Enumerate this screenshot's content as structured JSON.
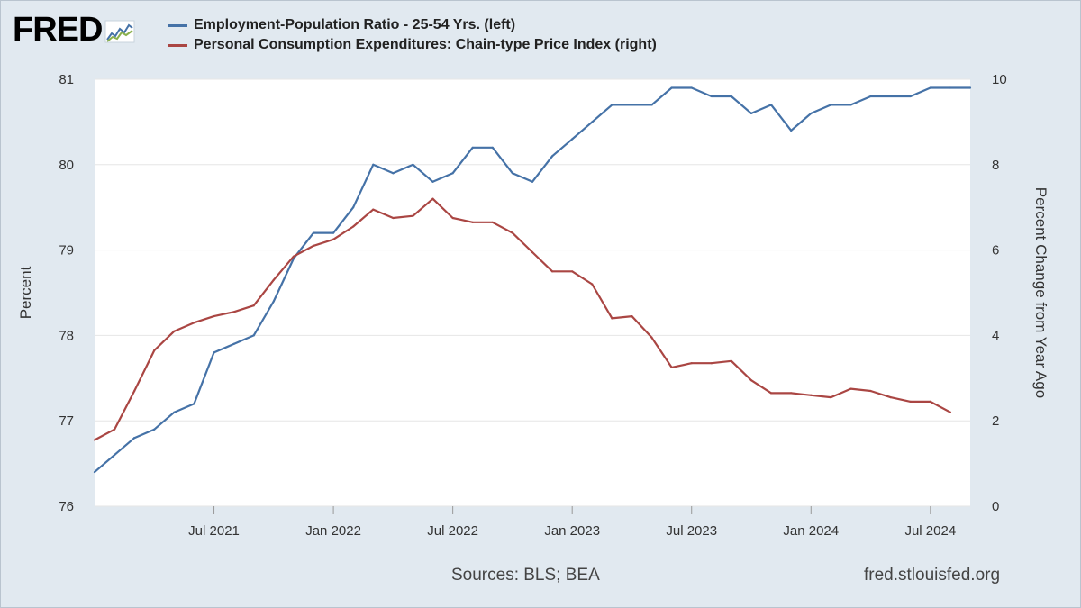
{
  "brand": {
    "logo_text": "FRED"
  },
  "footer": {
    "sources": "Sources: BLS; BEA",
    "site": "fred.stlouisfed.org"
  },
  "chart_data": {
    "type": "line",
    "x_ticks": [
      "Jul 2021",
      "Jan 2022",
      "Jul 2022",
      "Jan 2023",
      "Jul 2023",
      "Jan 2024",
      "Jul 2024"
    ],
    "x_start": "2021-01",
    "x_end": "2024-09",
    "y_left": {
      "label": "Percent",
      "range": [
        76,
        81
      ],
      "ticks": [
        "76",
        "77",
        "78",
        "79",
        "80",
        "81"
      ]
    },
    "y_right": {
      "label": "Percent Change from Year Ago",
      "range": [
        0,
        10
      ],
      "ticks": [
        "0",
        "2",
        "4",
        "6",
        "8",
        "10"
      ]
    },
    "grid": true,
    "legend_position": "top",
    "series": [
      {
        "name": "Employment-Population Ratio - 25-54 Yrs. (left)",
        "axis": "left",
        "color": "#4572a7",
        "values": [
          76.4,
          76.6,
          76.8,
          76.9,
          77.1,
          77.2,
          77.8,
          77.9,
          78.0,
          78.4,
          78.9,
          79.2,
          79.2,
          79.5,
          80.0,
          79.9,
          80.0,
          79.8,
          79.9,
          80.2,
          80.2,
          79.9,
          79.8,
          80.1,
          80.3,
          80.5,
          80.7,
          80.7,
          80.7,
          80.9,
          80.9,
          80.8,
          80.8,
          80.6,
          80.7,
          80.4,
          80.6,
          80.7,
          80.7,
          80.8,
          80.8,
          80.8,
          80.9,
          80.9,
          80.9
        ]
      },
      {
        "name": "Personal Consumption Expenditures: Chain-type Price Index (right)",
        "axis": "right",
        "color": "#aa4643",
        "values": [
          1.55,
          1.8,
          2.7,
          3.65,
          4.1,
          4.3,
          4.45,
          4.55,
          4.7,
          5.3,
          5.85,
          6.1,
          6.25,
          6.55,
          6.95,
          6.75,
          6.8,
          7.2,
          6.75,
          6.65,
          6.65,
          6.4,
          5.95,
          5.5,
          5.5,
          5.2,
          4.4,
          4.45,
          3.95,
          3.25,
          3.35,
          3.35,
          3.4,
          2.95,
          2.65,
          2.65,
          2.6,
          2.55,
          2.75,
          2.7,
          2.55,
          2.45,
          2.45,
          2.2
        ]
      }
    ]
  }
}
